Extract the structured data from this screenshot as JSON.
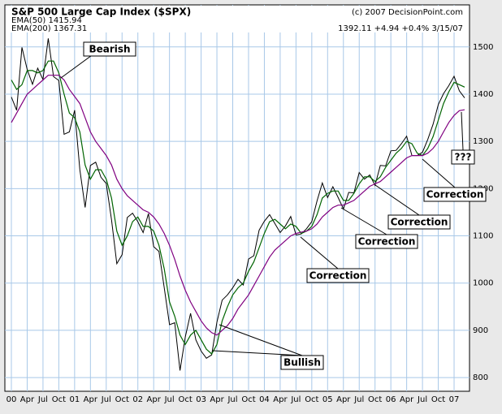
{
  "chart_data": {
    "type": "line",
    "title": "S&P 500 Large Cap Index ($SPX)",
    "copyright": "(c) 2007 DecisionPoint.com",
    "last_quote": "1392.11 +4.94 +0.4% 3/15/07",
    "categories": [
      "00",
      null,
      null,
      "Apr",
      null,
      null,
      "Jul",
      null,
      null,
      "Oct",
      null,
      null,
      "01",
      null,
      null,
      "Apr",
      null,
      null,
      "Jul",
      null,
      null,
      "Oct",
      null,
      null,
      "02",
      null,
      null,
      "Apr",
      null,
      null,
      "Jul",
      null,
      null,
      "Oct",
      null,
      null,
      "03",
      null,
      null,
      "Apr",
      null,
      null,
      "Jul",
      null,
      null,
      "Oct",
      null,
      null,
      "04",
      null,
      null,
      "Apr",
      null,
      null,
      "Jul",
      null,
      null,
      "Oct",
      null,
      null,
      "05",
      null,
      null,
      "Apr",
      null,
      null,
      "Jul",
      null,
      null,
      "Oct",
      null,
      null,
      "06",
      null,
      null,
      "Apr",
      null,
      null,
      "Jul",
      null,
      null,
      "Oct",
      null,
      null,
      "07",
      null,
      null
    ],
    "series": [
      {
        "color": "#000000",
        "values": [
          1394,
          1366,
          1499,
          1452,
          1421,
          1455,
          1431,
          1518,
          1437,
          1429,
          1315,
          1320,
          1366,
          1240,
          1160,
          1249,
          1256,
          1224,
          1211,
          1134,
          1041,
          1060,
          1139,
          1148,
          1130,
          1107,
          1147,
          1077,
          1067,
          990,
          912,
          916,
          815,
          886,
          936,
          880,
          856,
          841,
          848,
          917,
          964,
          975,
          990,
          1008,
          996,
          1051,
          1058,
          1112,
          1131,
          1145,
          1126,
          1107,
          1121,
          1141,
          1102,
          1104,
          1115,
          1130,
          1174,
          1212,
          1181,
          1204,
          1181,
          1157,
          1192,
          1191,
          1234,
          1220,
          1229,
          1207,
          1249,
          1248,
          1280,
          1281,
          1295,
          1311,
          1270,
          1270,
          1277,
          1304,
          1336,
          1378,
          1401,
          1418,
          1438,
          1407,
          1392
        ]
      },
      {
        "name": "EMA(50) 1415.94",
        "color": "#006400",
        "values": [
          1430,
          1410,
          1420,
          1450,
          1450,
          1445,
          1450,
          1470,
          1470,
          1445,
          1400,
          1360,
          1350,
          1320,
          1250,
          1220,
          1240,
          1240,
          1220,
          1180,
          1110,
          1080,
          1100,
          1130,
          1140,
          1120,
          1120,
          1110,
          1080,
          1030,
          960,
          930,
          890,
          870,
          890,
          900,
          880,
          860,
          850,
          870,
          920,
          950,
          975,
          990,
          1000,
          1025,
          1045,
          1075,
          1105,
          1130,
          1135,
          1125,
          1115,
          1125,
          1120,
          1105,
          1110,
          1120,
          1145,
          1180,
          1190,
          1195,
          1195,
          1175,
          1175,
          1190,
          1210,
          1225,
          1225,
          1215,
          1225,
          1245,
          1260,
          1275,
          1285,
          1300,
          1295,
          1275,
          1270,
          1285,
          1310,
          1345,
          1380,
          1405,
          1425,
          1420,
          1415
        ]
      },
      {
        "name": "EMA(200) 1367.31",
        "color": "#800080",
        "values": [
          1340,
          1360,
          1380,
          1400,
          1410,
          1420,
          1430,
          1440,
          1440,
          1440,
          1430,
          1410,
          1395,
          1380,
          1350,
          1320,
          1300,
          1285,
          1270,
          1250,
          1220,
          1200,
          1185,
          1175,
          1165,
          1155,
          1150,
          1140,
          1125,
          1105,
          1080,
          1050,
          1015,
          985,
          960,
          940,
          920,
          905,
          895,
          890,
          900,
          910,
          925,
          945,
          960,
          975,
          995,
          1015,
          1035,
          1055,
          1070,
          1080,
          1090,
          1100,
          1105,
          1108,
          1110,
          1115,
          1125,
          1140,
          1150,
          1160,
          1165,
          1165,
          1170,
          1175,
          1185,
          1195,
          1205,
          1210,
          1215,
          1225,
          1235,
          1245,
          1255,
          1265,
          1270,
          1270,
          1270,
          1275,
          1285,
          1300,
          1320,
          1340,
          1355,
          1365,
          1367
        ]
      }
    ],
    "ylim": [
      771,
      1589
    ],
    "yticks": [
      800,
      900,
      1000,
      1100,
      1200,
      1300,
      1400,
      1500
    ],
    "grid": true,
    "annotations": [
      "Bearish",
      "Bullish",
      "Correction",
      "Correction",
      "Correction",
      "Correction",
      "???"
    ]
  }
}
